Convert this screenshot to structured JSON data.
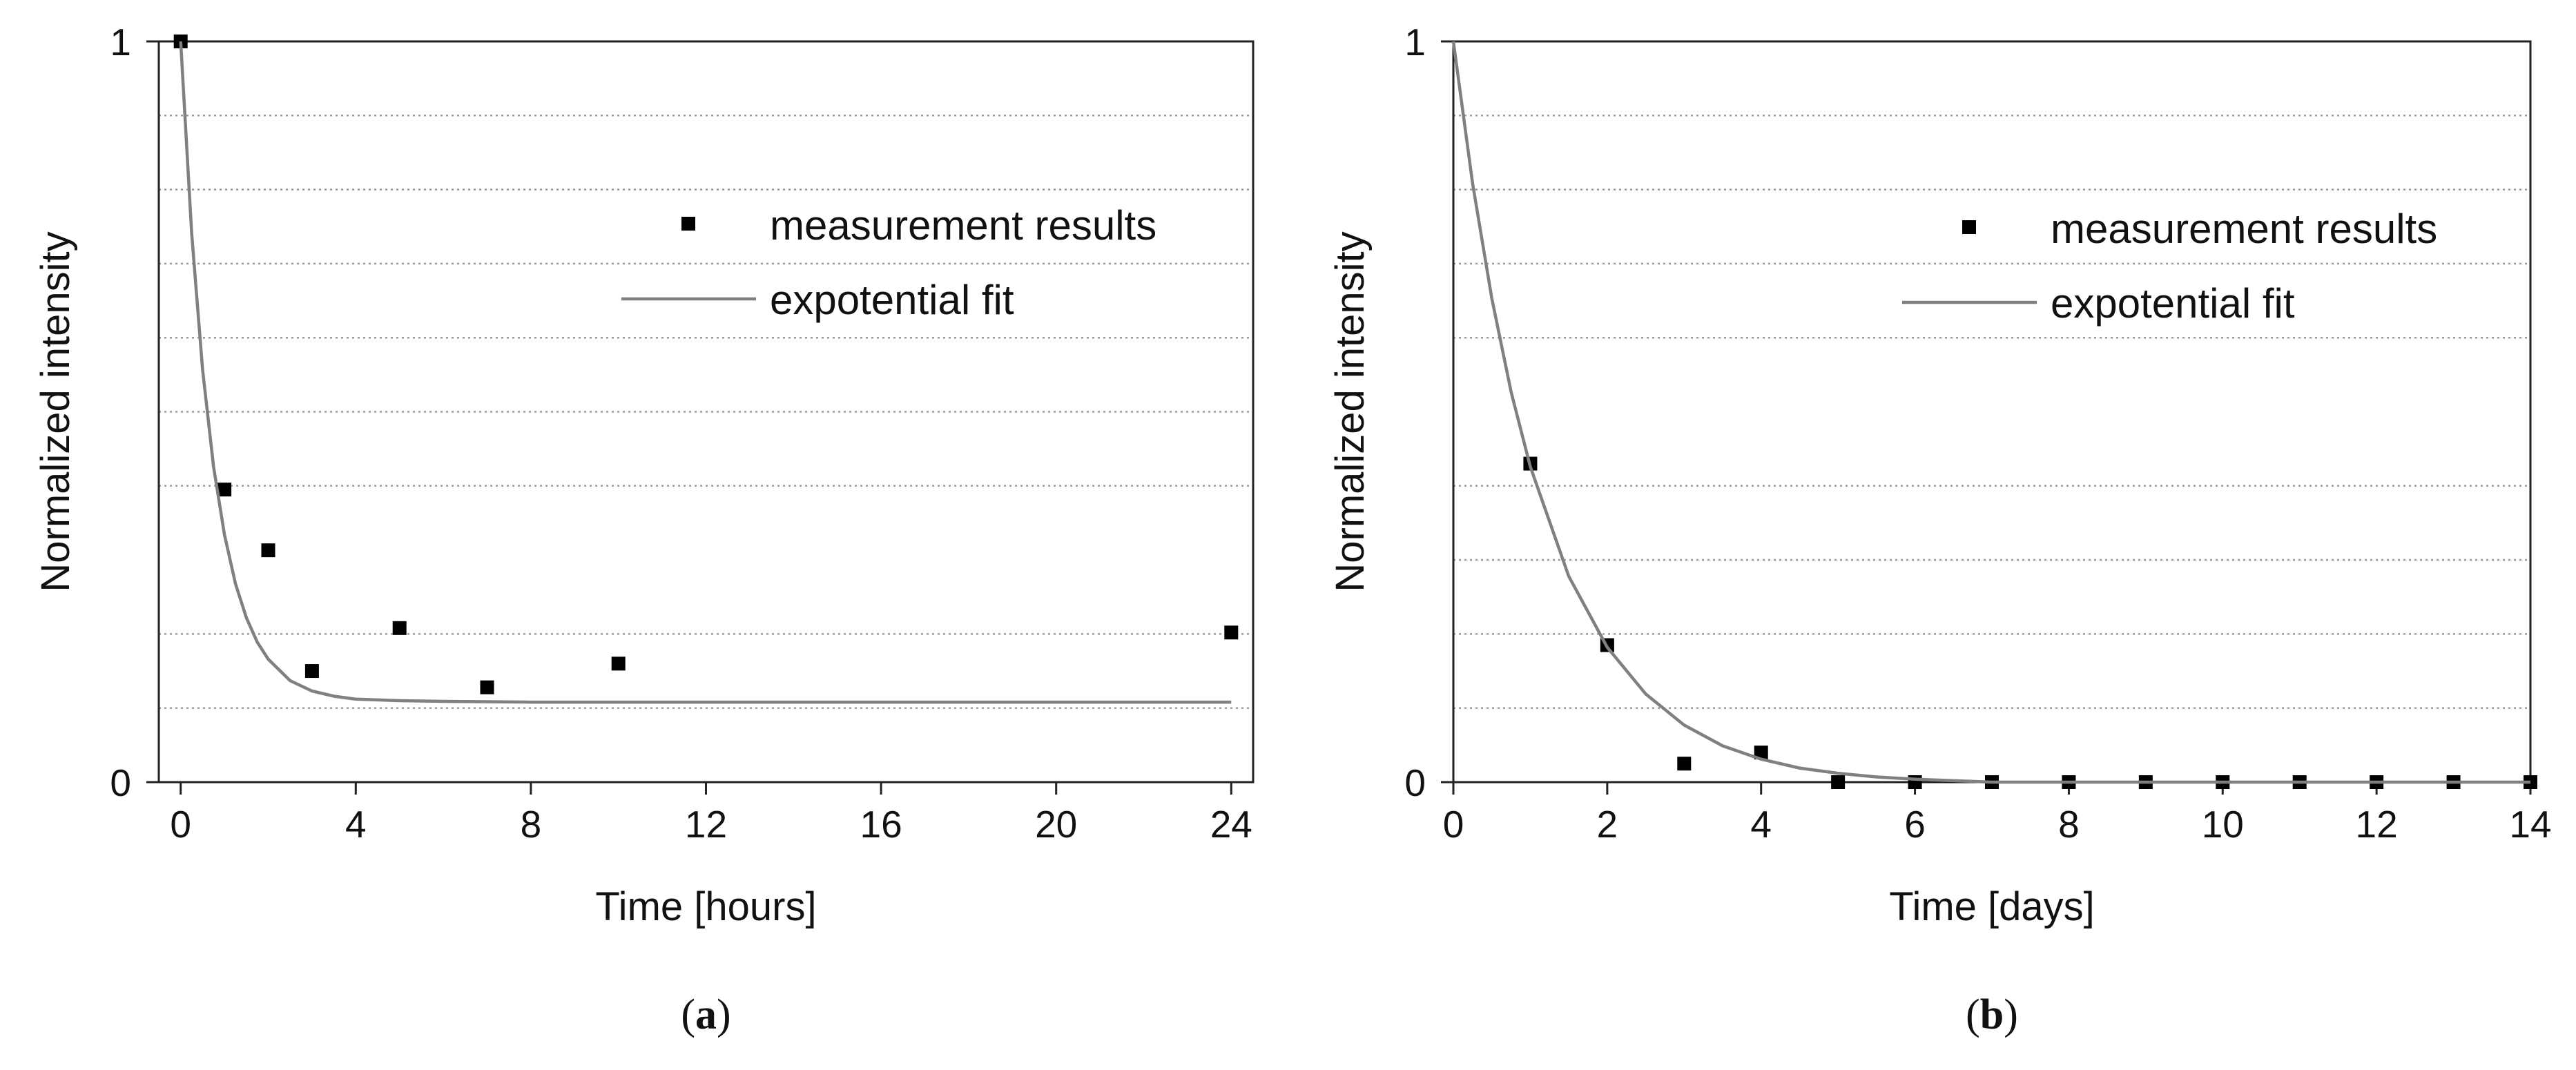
{
  "chart_data": [
    {
      "type": "scatter",
      "panel_label": "a",
      "title": "",
      "xlabel": "Time [hours]",
      "ylabel": "Normalized intensity",
      "xlim": [
        -0.5,
        24.5
      ],
      "ylim": [
        0,
        1
      ],
      "xticks": [
        0,
        4,
        8,
        12,
        16,
        20,
        24
      ],
      "yticks": [
        0,
        1
      ],
      "grid": "horizontal dotted",
      "grid_values": [
        0.1,
        0.2,
        0.4,
        0.5,
        0.6,
        0.7,
        0.8,
        0.9
      ],
      "legend_position": "right",
      "series": [
        {
          "name": "measurement results",
          "kind": "points",
          "color": "#000000",
          "x": [
            0,
            1,
            2,
            3,
            5,
            7,
            10,
            24
          ],
          "y": [
            1.0,
            0.395,
            0.313,
            0.15,
            0.208,
            0.128,
            0.16,
            0.202
          ]
        },
        {
          "name": "expotential fit",
          "kind": "line",
          "color": "#808080",
          "x": [
            0,
            0.25,
            0.5,
            0.75,
            1,
            1.25,
            1.5,
            1.75,
            2,
            2.5,
            3,
            3.5,
            4,
            5,
            6,
            8,
            10,
            12,
            14,
            16,
            18,
            20,
            22,
            24
          ],
          "y": [
            1.0,
            0.741,
            0.557,
            0.426,
            0.334,
            0.268,
            0.222,
            0.189,
            0.166,
            0.137,
            0.123,
            0.116,
            0.112,
            0.11,
            0.109,
            0.108,
            0.108,
            0.108,
            0.108,
            0.108,
            0.108,
            0.108,
            0.108,
            0.108
          ]
        }
      ]
    },
    {
      "type": "scatter",
      "panel_label": "b",
      "title": "",
      "xlabel": "Time [days]",
      "ylabel": "Normalized intensity",
      "xlim": [
        0,
        14
      ],
      "ylim": [
        0,
        1
      ],
      "xticks": [
        0,
        2,
        4,
        6,
        8,
        10,
        12,
        14
      ],
      "yticks": [
        0,
        1
      ],
      "grid": "horizontal dotted",
      "grid_values": [
        0.1,
        0.2,
        0.3,
        0.4,
        0.6,
        0.7,
        0.8,
        0.9
      ],
      "legend_position": "top-right",
      "series": [
        {
          "name": "measurement results",
          "kind": "points",
          "color": "#000000",
          "x": [
            1,
            2,
            3,
            4,
            5,
            6,
            7,
            8,
            9,
            10,
            11,
            12,
            13,
            14
          ],
          "y": [
            0.43,
            0.185,
            0.025,
            0.04,
            0.0,
            0.0,
            0.0,
            0.0,
            0.0,
            0.0,
            0.0,
            0.0,
            0.0,
            0.0
          ]
        },
        {
          "name": "expotential fit",
          "kind": "line",
          "color": "#808080",
          "x": [
            0,
            0.25,
            0.5,
            0.75,
            1,
            1.5,
            2,
            2.5,
            3,
            3.5,
            4,
            4.5,
            5,
            5.5,
            6,
            7,
            8,
            9,
            10,
            11,
            12,
            13,
            14
          ],
          "y": [
            1.0,
            0.808,
            0.653,
            0.527,
            0.426,
            0.278,
            0.182,
            0.119,
            0.077,
            0.049,
            0.031,
            0.019,
            0.012,
            0.007,
            0.004,
            0.0,
            0.0,
            0.0,
            0.0,
            0.0,
            0.0,
            0.0,
            0.0
          ]
        }
      ]
    }
  ]
}
